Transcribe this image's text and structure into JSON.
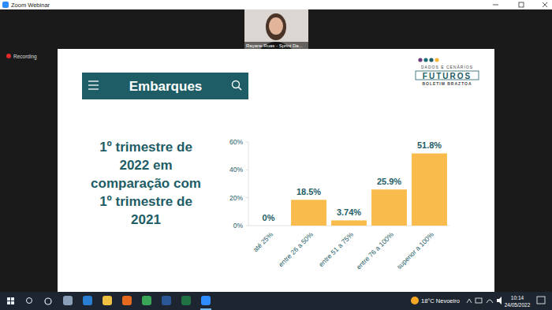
{
  "window": {
    "title": "Zoom Webinar",
    "participant": "Rayane Ruas - Sprint Da...",
    "recording": "Recording"
  },
  "slide": {
    "header": "Embarques",
    "logo": {
      "subtitle": "DADOS E CENÁRIOS",
      "brand": "FUTUROS",
      "tagline": "BOLETIM BRAZTOA"
    },
    "heading": [
      "1º trimestre de",
      "2022 em",
      "comparação com",
      "1º trimestre de",
      "2021"
    ]
  },
  "chart_data": {
    "type": "bar",
    "categories": [
      "até 25%",
      "entre 26 a 50%",
      "entre 51 a 75%",
      "entre 76 a 100%",
      "superior a 100%"
    ],
    "values": [
      0,
      18.5,
      3.74,
      25.9,
      51.8
    ],
    "value_labels": [
      "0%",
      "18.5%",
      "3.74%",
      "25.9%",
      "51.8%"
    ],
    "color": "#f9bc4c",
    "ylim": [
      0,
      60
    ],
    "yticks": [
      {
        "value": 0,
        "label": "0%"
      },
      {
        "value": 20,
        "label": "20%"
      },
      {
        "value": 40,
        "label": "40%"
      },
      {
        "value": 60,
        "label": "60%"
      }
    ],
    "grid": false,
    "data_labels": true
  },
  "taskbar": {
    "weather": "18°C Nevoeiro",
    "time": "10:14",
    "date": "24/05/2022"
  }
}
